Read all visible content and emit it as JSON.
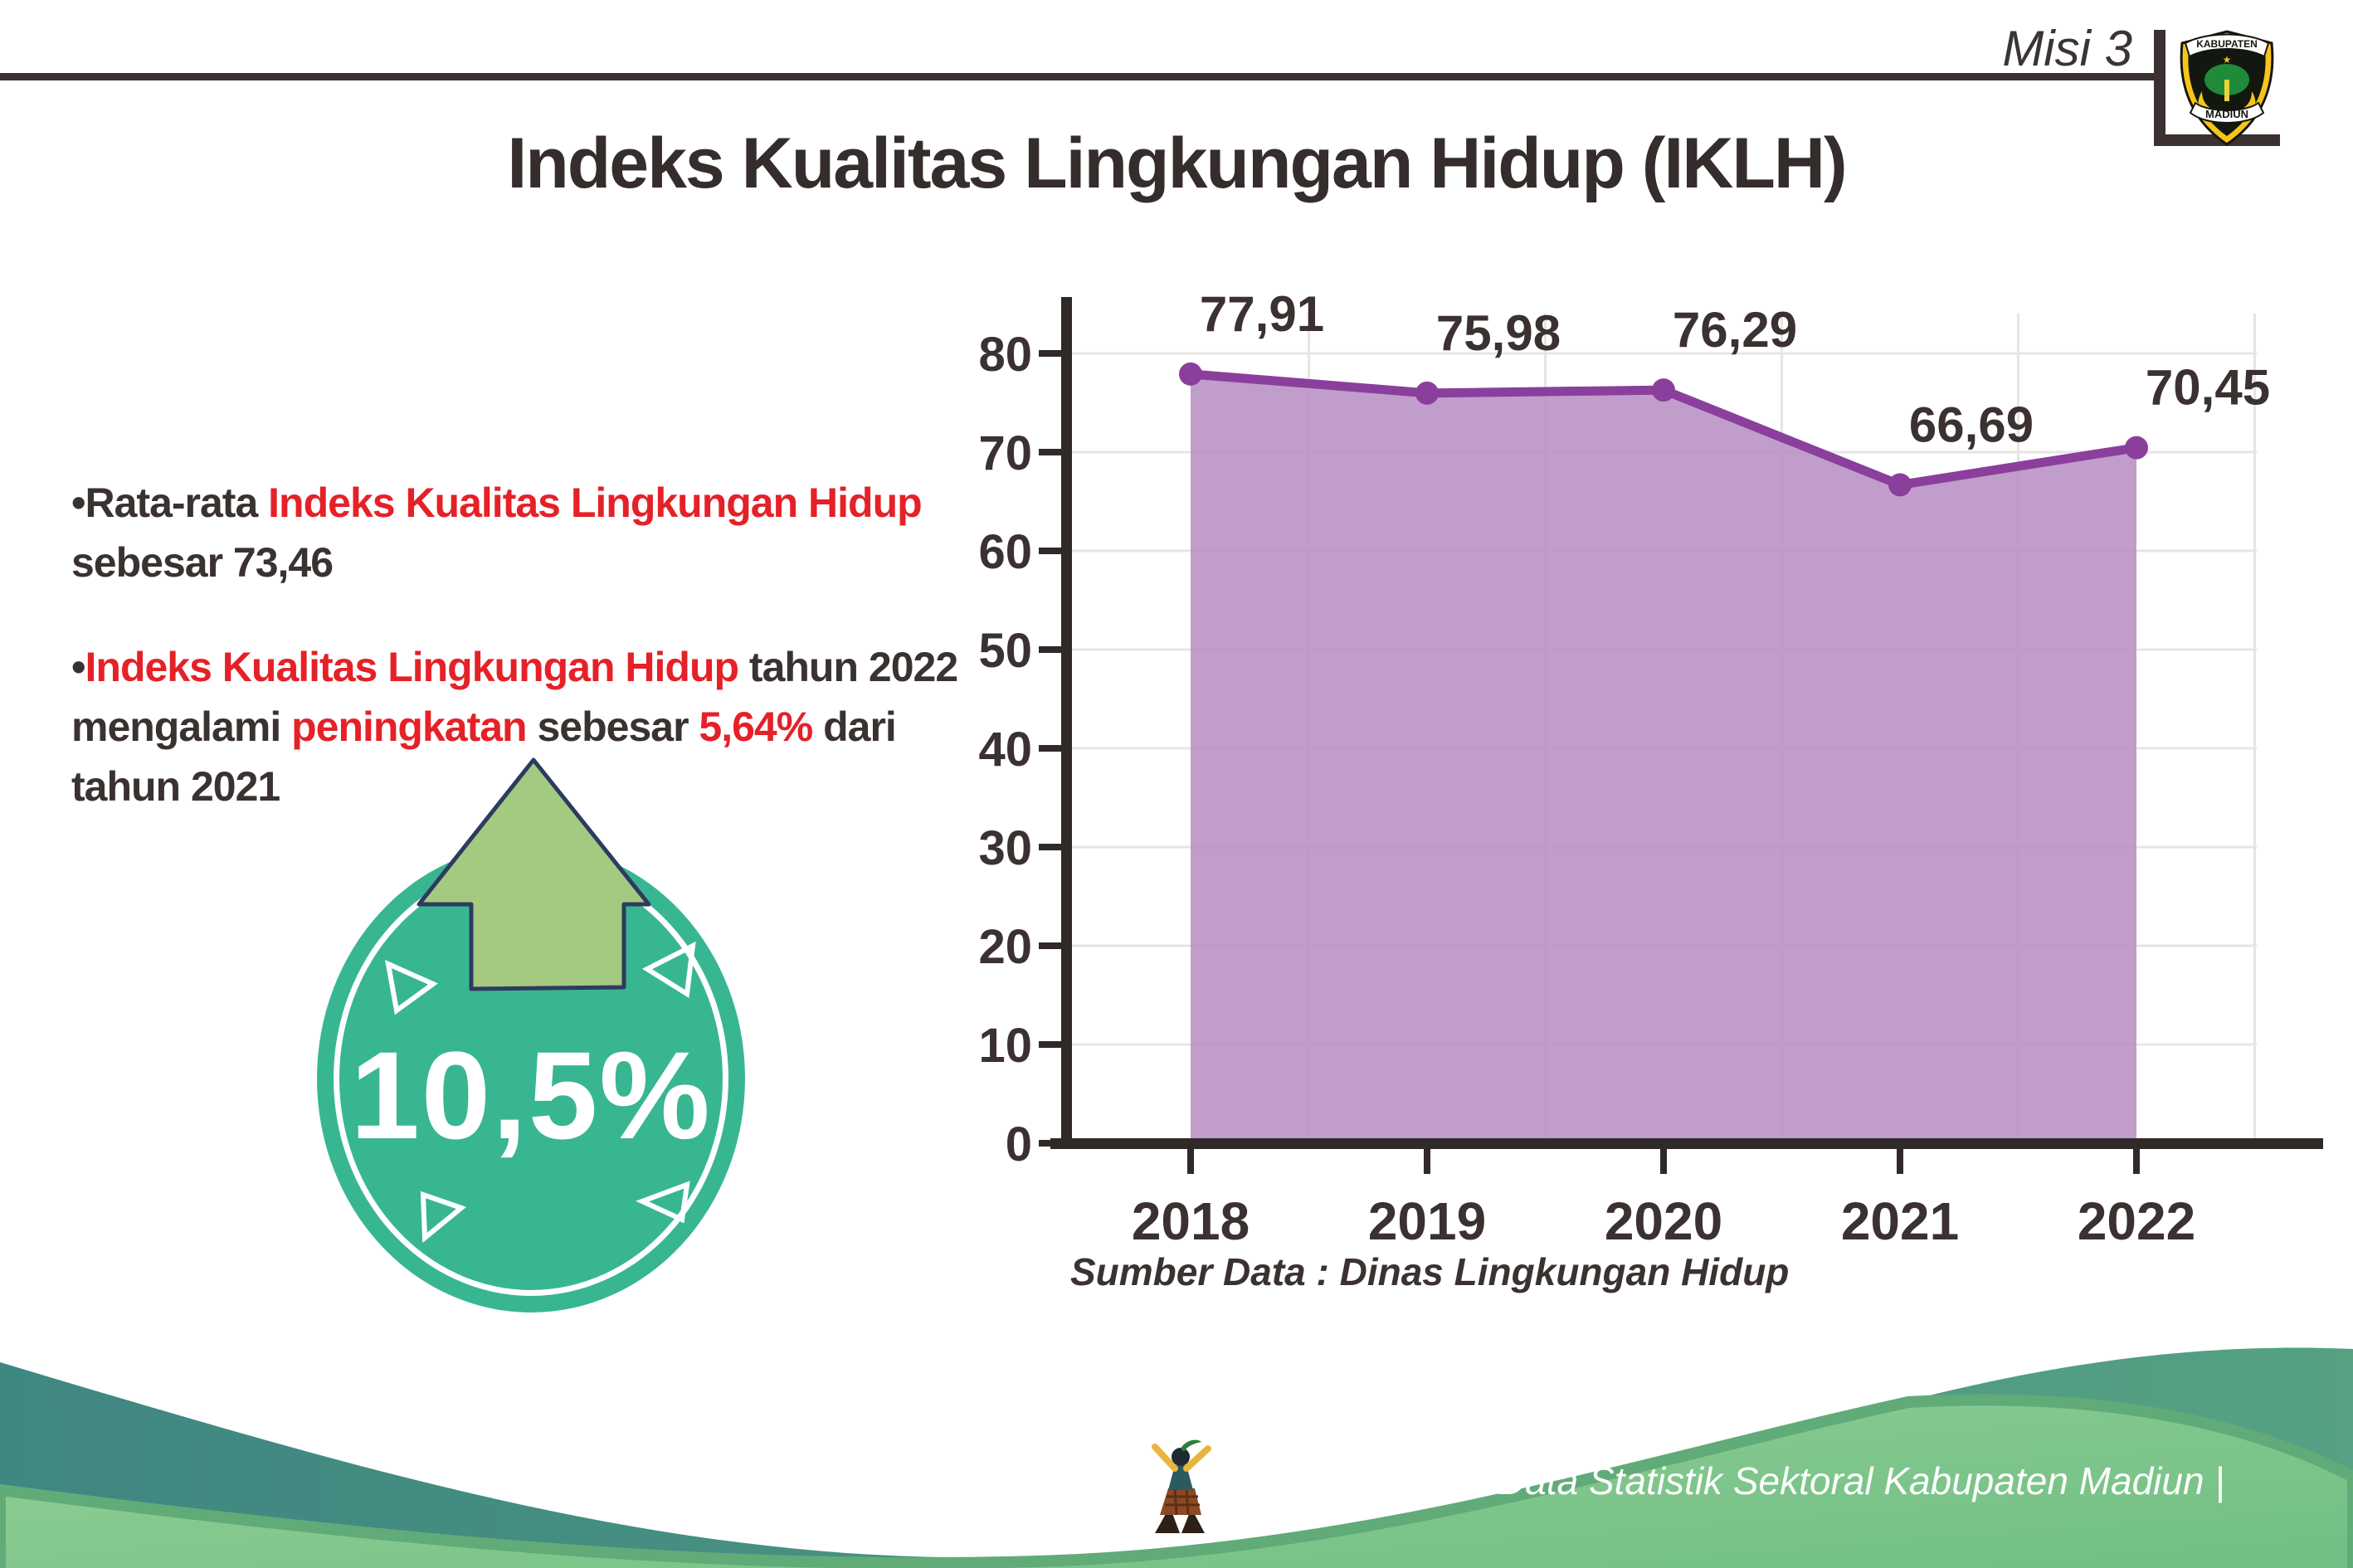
{
  "header": {
    "misi_label": "Misi 3",
    "logo": {
      "top_text": "KABUPATEN",
      "bottom_text": "MADIUN"
    }
  },
  "title": "Indeks Kualitas Lingkungan Hidup (IKLH)",
  "bullets": [
    {
      "marker": "•",
      "lines": [
        {
          "segs": [
            {
              "text": "Rata-rata ",
              "color": "dark"
            },
            {
              "text": "Indeks Kualitas Lingkungan Hidup",
              "color": "red"
            }
          ]
        },
        {
          "segs": [
            {
              "text": "sebesar 73,46",
              "color": "dark"
            }
          ]
        }
      ]
    },
    {
      "marker": "•",
      "lines": [
        {
          "segs": [
            {
              "text": "Indeks Kualitas Lingkungan Hidup",
              "color": "red"
            },
            {
              "text": " tahun 2022",
              "color": "dark"
            }
          ]
        },
        {
          "segs": [
            {
              "text": "mengalami ",
              "color": "dark"
            },
            {
              "text": "peningkatan",
              "color": "red"
            },
            {
              "text": " sebesar ",
              "color": "dark"
            },
            {
              "text": "5,64%",
              "color": "red"
            },
            {
              "text": " dari",
              "color": "dark"
            }
          ]
        },
        {
          "segs": [
            {
              "text": "tahun 2021",
              "color": "dark"
            }
          ]
        }
      ]
    }
  ],
  "badge": {
    "value": "10,5%",
    "icon": "up-arrow-icon"
  },
  "chart_data": {
    "type": "area",
    "categories": [
      "2018",
      "2019",
      "2020",
      "2021",
      "2022"
    ],
    "values": [
      77.91,
      75.98,
      76.29,
      66.69,
      70.45
    ],
    "value_labels": [
      "77,91",
      "75,98",
      "76,29",
      "66,69",
      "70,45"
    ],
    "yticks": [
      0,
      10,
      20,
      30,
      40,
      50,
      60,
      70,
      80
    ],
    "ylim": [
      0,
      85
    ],
    "grid": "on",
    "legend": "none",
    "title": "",
    "xlabel": "",
    "ylabel": "",
    "source_note": "Sumber Data : Dinas Lingkungan Hidup",
    "line_color": "#8b3f9c",
    "fill_color": "#b88fc5",
    "marker_color": "#8b3f9c",
    "grid_color": "#e7e5e4",
    "axis_color": "#2f2a28",
    "label_color": "#3a3130"
  },
  "footer": {
    "credit": "Media Infografis Data Statistik Sektoral Kabupaten Madiun |"
  },
  "theme": {
    "dark_text": "#3a3231",
    "red_text": "#e52128",
    "badge_teal": "#38b692",
    "arrow_green": "#a3ca80",
    "arrow_outline_navy": "#2e3b5f",
    "footer_teal": "#3f8781",
    "footer_green": "#74c187",
    "footer_edge_green": "#61ab79",
    "rule_color": "#3a3130"
  }
}
